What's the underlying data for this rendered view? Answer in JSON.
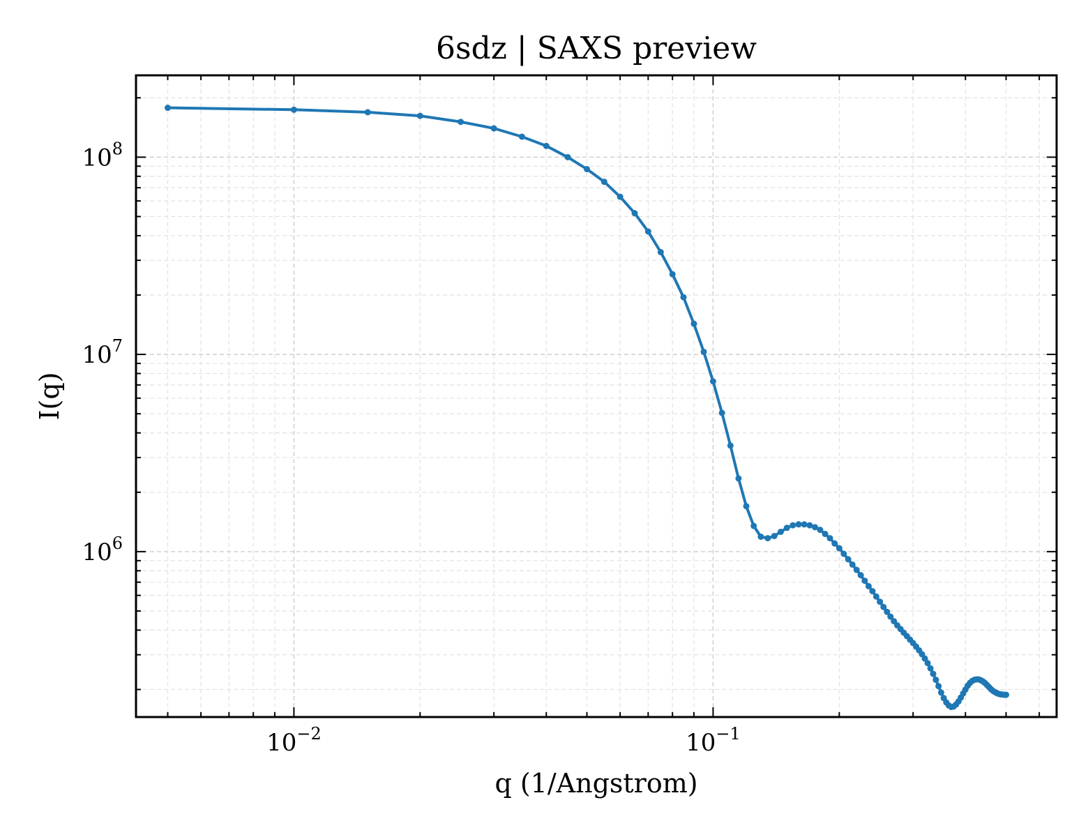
{
  "chart_data": {
    "type": "line",
    "title": "6sdz | SAXS preview",
    "xlabel": "q (1/Angstrom)",
    "ylabel": "I(q)",
    "x_scale": "log",
    "y_scale": "log",
    "xlim": [
      0.0042,
      0.66
    ],
    "ylim": [
      145000,
      260000000
    ],
    "grid": true,
    "x_ticks": [
      {
        "value": 0.01,
        "mant": "10",
        "exp": "−2"
      },
      {
        "value": 0.1,
        "mant": "10",
        "exp": "−1"
      }
    ],
    "y_ticks": [
      {
        "value": 1000000,
        "mant": "10",
        "exp": "6"
      },
      {
        "value": 10000000,
        "mant": "10",
        "exp": "7"
      },
      {
        "value": 100000000,
        "mant": "10",
        "exp": "8"
      }
    ],
    "series": [
      {
        "color": "#1f77b4",
        "points": [
          [
            0.005,
            178000000
          ],
          [
            0.01,
            174000000
          ],
          [
            0.015,
            169000000
          ],
          [
            0.02,
            162000000
          ],
          [
            0.025,
            151000000
          ],
          [
            0.03,
            140000000
          ],
          [
            0.035,
            127000000
          ],
          [
            0.04,
            114000000
          ],
          [
            0.045,
            100000000
          ],
          [
            0.05,
            87000000
          ],
          [
            0.055,
            75000000
          ],
          [
            0.06,
            63000000
          ],
          [
            0.065,
            52000000
          ],
          [
            0.07,
            42000000
          ],
          [
            0.075,
            33000000
          ],
          [
            0.08,
            25500000
          ],
          [
            0.085,
            19500000
          ],
          [
            0.09,
            14300000
          ],
          [
            0.095,
            10300000
          ],
          [
            0.1,
            7300000
          ],
          [
            0.105,
            5050000
          ],
          [
            0.11,
            3450000
          ],
          [
            0.115,
            2350000
          ],
          [
            0.12,
            1700000
          ],
          [
            0.125,
            1350000
          ],
          [
            0.13,
            1190000
          ],
          [
            0.135,
            1170000
          ],
          [
            0.14,
            1200000
          ],
          [
            0.145,
            1260000
          ],
          [
            0.15,
            1320000
          ],
          [
            0.155,
            1360000
          ],
          [
            0.16,
            1375000
          ],
          [
            0.165,
            1375000
          ],
          [
            0.17,
            1360000
          ],
          [
            0.175,
            1330000
          ],
          [
            0.18,
            1290000
          ],
          [
            0.185,
            1230000
          ],
          [
            0.19,
            1170000
          ],
          [
            0.195,
            1100000
          ],
          [
            0.2,
            1040000
          ],
          [
            0.205,
            975000
          ],
          [
            0.21,
            915000
          ],
          [
            0.215,
            860000
          ],
          [
            0.22,
            808000
          ],
          [
            0.225,
            760000
          ],
          [
            0.23,
            712000
          ],
          [
            0.235,
            668000
          ],
          [
            0.24,
            630000
          ],
          [
            0.245,
            592000
          ],
          [
            0.25,
            557000
          ],
          [
            0.255,
            524000
          ],
          [
            0.26,
            495000
          ],
          [
            0.265,
            468000
          ],
          [
            0.27,
            444000
          ],
          [
            0.275,
            423000
          ],
          [
            0.28,
            405000
          ],
          [
            0.285,
            388000
          ],
          [
            0.29,
            373000
          ],
          [
            0.295,
            358000
          ],
          [
            0.3,
            344000
          ],
          [
            0.305,
            330000
          ],
          [
            0.31,
            316000
          ],
          [
            0.315,
            302000
          ],
          [
            0.32,
            287000
          ],
          [
            0.325,
            272000
          ],
          [
            0.33,
            256000
          ],
          [
            0.335,
            240000
          ],
          [
            0.34,
            224000
          ],
          [
            0.345,
            208000
          ],
          [
            0.35,
            193000
          ],
          [
            0.355,
            181000
          ],
          [
            0.36,
            172000
          ],
          [
            0.365,
            166000
          ],
          [
            0.37,
            163000
          ],
          [
            0.375,
            164000
          ],
          [
            0.38,
            168000
          ],
          [
            0.385,
            174000
          ],
          [
            0.39,
            182000
          ],
          [
            0.395,
            191000
          ],
          [
            0.4,
            200000
          ],
          [
            0.405,
            209000
          ],
          [
            0.41,
            216000
          ],
          [
            0.415,
            221000
          ],
          [
            0.42,
            224000
          ],
          [
            0.425,
            225000
          ],
          [
            0.43,
            225000
          ],
          [
            0.435,
            223000
          ],
          [
            0.44,
            220000
          ],
          [
            0.445,
            216000
          ],
          [
            0.45,
            211000
          ],
          [
            0.455,
            206000
          ],
          [
            0.46,
            201000
          ],
          [
            0.465,
            197000
          ],
          [
            0.47,
            194000
          ],
          [
            0.475,
            192000
          ],
          [
            0.48,
            190000
          ],
          [
            0.485,
            189000
          ],
          [
            0.49,
            188500
          ],
          [
            0.495,
            188000
          ],
          [
            0.5,
            188000
          ]
        ]
      }
    ]
  }
}
